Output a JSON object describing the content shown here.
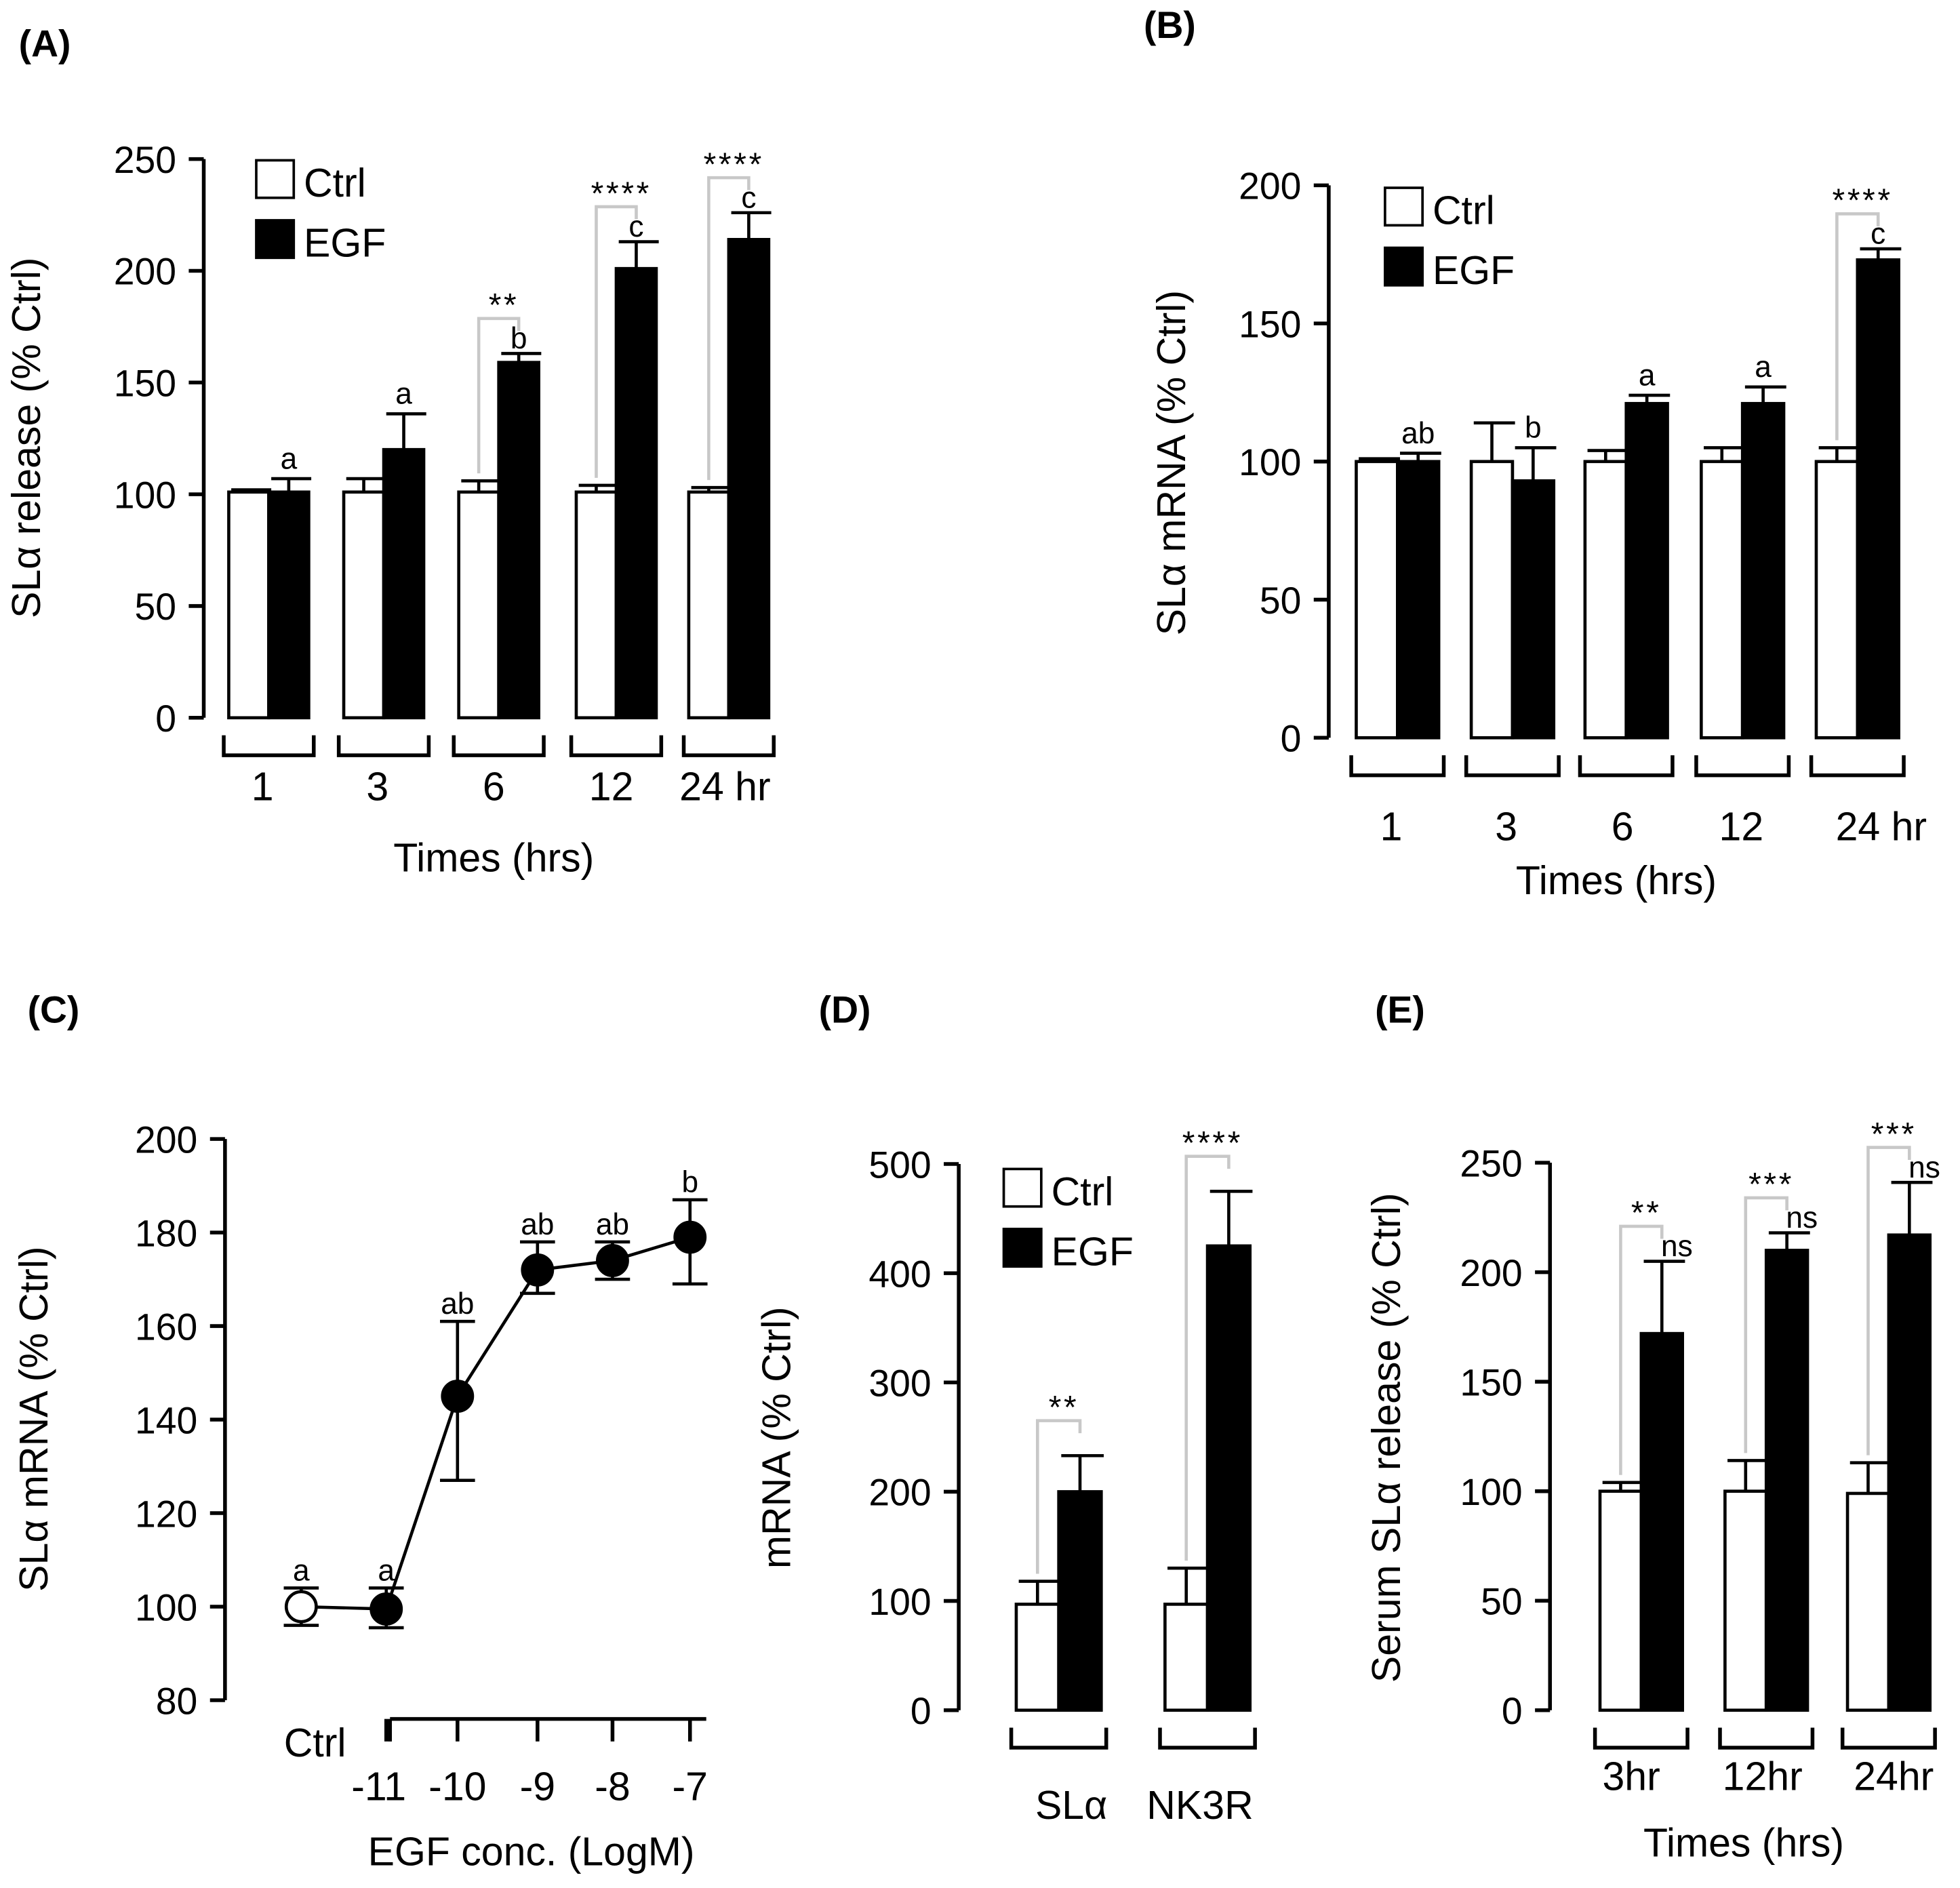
{
  "chart_data": [
    {
      "id": "A",
      "panel_label": "(A)",
      "type": "bar",
      "ylabel": "SLα release (% Ctrl)",
      "xlabel": "Times (hrs)",
      "ylim": [
        0,
        250
      ],
      "yticks": [
        0,
        50,
        100,
        150,
        200,
        250
      ],
      "categories": [
        "1",
        "3",
        "6",
        "12",
        "24 hr"
      ],
      "legend": [
        "Ctrl",
        "EGF"
      ],
      "legend_position": "top-left",
      "series": [
        {
          "name": "Ctrl",
          "color": "#ffffff",
          "values": [
            101,
            101,
            101,
            101,
            101
          ],
          "error_top": [
            102,
            107,
            106,
            104,
            103
          ]
        },
        {
          "name": "EGF",
          "color": "#000000",
          "values": [
            101,
            120,
            159,
            201,
            214
          ],
          "error_top": [
            107,
            136,
            163,
            213,
            226
          ]
        }
      ],
      "letters": [
        "a",
        "a",
        "b",
        "c",
        "c"
      ],
      "significance": [
        "",
        "",
        "**",
        "****",
        "****"
      ]
    },
    {
      "id": "B",
      "panel_label": "(B)",
      "type": "bar",
      "ylabel": "SLα mRNA (% Ctrl)",
      "xlabel": "Times (hrs)",
      "ylim": [
        0,
        200
      ],
      "yticks": [
        0,
        50,
        100,
        150,
        200
      ],
      "categories": [
        "1",
        "3",
        "6",
        "12",
        "24 hr"
      ],
      "legend": [
        "Ctrl",
        "EGF"
      ],
      "legend_position": "top-left",
      "series": [
        {
          "name": "Ctrl",
          "color": "#ffffff",
          "values": [
            100,
            100,
            100,
            100,
            100
          ],
          "error_top": [
            101,
            114,
            104,
            105,
            105
          ]
        },
        {
          "name": "EGF",
          "color": "#000000",
          "values": [
            100,
            93,
            121,
            121,
            173
          ],
          "error_top": [
            103,
            105,
            124,
            127,
            177
          ]
        }
      ],
      "letters": [
        "ab",
        "b",
        "a",
        "a",
        "c"
      ],
      "significance": [
        "",
        "",
        "",
        "",
        "****"
      ]
    },
    {
      "id": "C",
      "panel_label": "(C)",
      "type": "line",
      "ylabel": "SLα mRNA (% Ctrl)",
      "xlabel": "EGF conc. (LogM)",
      "ylim": [
        80,
        200
      ],
      "yticks": [
        80,
        100,
        120,
        140,
        160,
        180,
        200
      ],
      "ctrl_label": "Ctrl",
      "x": [
        "Ctrl",
        "-11",
        "-10",
        "-9",
        "-8",
        "-7"
      ],
      "values": [
        100,
        99.5,
        145,
        172,
        174,
        179
      ],
      "error_low": [
        96,
        95.5,
        127,
        167,
        170,
        169
      ],
      "error_high": [
        104,
        104,
        161,
        178,
        178,
        187
      ],
      "letters": [
        "a",
        "a",
        "ab",
        "ab",
        "ab",
        "b"
      ]
    },
    {
      "id": "D",
      "panel_label": "(D)",
      "type": "bar",
      "ylabel": "mRNA  (% Ctrl)",
      "xlabel": "",
      "ylim": [
        0,
        500
      ],
      "yticks": [
        0,
        100,
        200,
        300,
        400,
        500
      ],
      "categories": [
        "SLα",
        "NK3R"
      ],
      "legend": [
        "Ctrl",
        "EGF"
      ],
      "legend_position": "top-left",
      "series": [
        {
          "name": "Ctrl",
          "color": "#ffffff",
          "values": [
            97,
            97
          ],
          "error_top": [
            118,
            130
          ]
        },
        {
          "name": "EGF",
          "color": "#000000",
          "values": [
            200,
            425
          ],
          "error_top": [
            233,
            475
          ]
        }
      ],
      "significance": [
        "**",
        "****"
      ]
    },
    {
      "id": "E",
      "panel_label": "(E)",
      "type": "bar",
      "ylabel": "Serum SLα release (% Ctrl)",
      "xlabel": "Times (hrs)",
      "ylim": [
        0,
        250
      ],
      "yticks": [
        0,
        50,
        100,
        150,
        200,
        250
      ],
      "categories": [
        "3hr",
        "12hr",
        "24hr"
      ],
      "series": [
        {
          "name": "Ctrl",
          "color": "#ffffff",
          "values": [
            100,
            100,
            99
          ],
          "error_top": [
            104,
            114,
            113
          ]
        },
        {
          "name": "EGF",
          "color": "#000000",
          "values": [
            172,
            210,
            217
          ],
          "error_top": [
            205,
            218,
            241
          ]
        }
      ],
      "letters": [
        "ns",
        "ns",
        "ns"
      ],
      "significance": [
        "**",
        "***",
        "***"
      ]
    }
  ]
}
